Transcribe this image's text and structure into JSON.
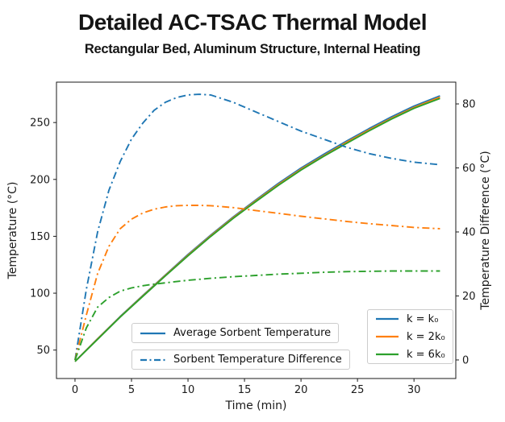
{
  "title": "Detailed AC-TSAC Thermal Model",
  "subtitle": "Rectangular Bed, Aluminum Structure, Internal Heating",
  "chart_data": {
    "type": "line",
    "title": "Detailed AC-TSAC Thermal Model",
    "subtitle": "Rectangular Bed, Aluminum Structure, Internal Heating",
    "xlabel": "Time (min)",
    "ylabel_left": "Temperature (°C)",
    "ylabel_right": "Temperature Difference (°C)",
    "grid": false,
    "x_ticks": [
      0,
      5,
      10,
      15,
      20,
      25,
      30
    ],
    "y_left_ticks": [
      50,
      100,
      150,
      200,
      250
    ],
    "y_right_ticks": [
      0,
      20,
      40,
      60,
      80
    ],
    "x_range": [
      -1.64,
      33.7
    ],
    "y_left_range": [
      25,
      285.5
    ],
    "y_right_range": [
      -5.8,
      86.8
    ],
    "colors": {
      "k0": "#1f77b4",
      "2k0": "#ff7f0e",
      "6k0": "#2ca02c"
    },
    "series": [
      {
        "id": "avg-temp-k0",
        "name": "Average Sorbent Temperature (k = k₀)",
        "color": "#1f77b4",
        "style": "solid",
        "axis": "left",
        "x": [
          0,
          2,
          4,
          6,
          8,
          10,
          12,
          14,
          16,
          18,
          20,
          22,
          24,
          26,
          28,
          30,
          32.3
        ],
        "y": [
          40,
          60,
          79.5,
          98,
          116,
          134,
          151,
          167,
          182,
          196.5,
          210,
          222,
          233.5,
          244.5,
          255,
          264.5,
          273.5
        ]
      },
      {
        "id": "avg-temp-2k0",
        "name": "Average Sorbent Temperature (k = 2k₀)",
        "color": "#ff7f0e",
        "style": "solid",
        "axis": "left",
        "x": [
          0,
          2,
          4,
          6,
          8,
          10,
          12,
          14,
          16,
          18,
          20,
          22,
          24,
          26,
          28,
          30,
          32.3
        ],
        "y": [
          40,
          59.8,
          79.2,
          97.6,
          115.6,
          133.4,
          150.4,
          166.4,
          181.2,
          195.6,
          209,
          220.8,
          232.4,
          243.4,
          253.8,
          263.3,
          272.3
        ]
      },
      {
        "id": "avg-temp-6k0",
        "name": "Average Sorbent Temperature (k = 6k₀)",
        "color": "#2ca02c",
        "style": "solid",
        "axis": "left",
        "x": [
          0,
          2,
          4,
          6,
          8,
          10,
          12,
          14,
          16,
          18,
          20,
          22,
          24,
          26,
          28,
          30,
          32.3
        ],
        "y": [
          40,
          59.5,
          79,
          97.2,
          115.2,
          132.8,
          149.8,
          165.8,
          180.5,
          194.8,
          208.2,
          220.2,
          231.5,
          242.5,
          253,
          262.5,
          271.2
        ]
      },
      {
        "id": "temp-diff-k0",
        "name": "Sorbent Temperature Difference (k = k₀)",
        "color": "#1f77b4",
        "style": "dashdot",
        "axis": "right",
        "x": [
          0,
          1,
          2,
          3,
          4,
          5,
          6,
          7,
          8,
          9,
          10,
          11,
          12,
          14,
          16,
          18,
          20,
          22,
          24,
          26,
          28,
          30,
          32.3
        ],
        "y": [
          0,
          22,
          40,
          53,
          62,
          69,
          74,
          78,
          80.5,
          82,
          82.8,
          83,
          82.8,
          80.5,
          77.5,
          74.5,
          71.5,
          69,
          66.5,
          64.5,
          63,
          61.8,
          61
        ]
      },
      {
        "id": "temp-diff-2k0",
        "name": "Sorbent Temperature Difference (k = 2k₀)",
        "color": "#ff7f0e",
        "style": "dashdot",
        "axis": "right",
        "x": [
          0,
          1,
          2,
          3,
          4,
          5,
          6,
          7,
          8,
          9,
          10,
          11,
          12,
          14,
          16,
          18,
          20,
          22,
          24,
          26,
          28,
          30,
          32.3
        ],
        "y": [
          0,
          14,
          27,
          35.5,
          41,
          44,
          45.9,
          47.1,
          47.8,
          48.2,
          48.3,
          48.3,
          48.2,
          47.6,
          46.7,
          45.8,
          44.9,
          44.1,
          43.3,
          42.6,
          42,
          41.4,
          41
        ]
      },
      {
        "id": "temp-diff-6k0",
        "name": "Sorbent Temperature Difference (k = 6k₀)",
        "color": "#2ca02c",
        "style": "dashdot",
        "axis": "right",
        "x": [
          0,
          1,
          2,
          3,
          4,
          5,
          6,
          7,
          8,
          9,
          10,
          11,
          12,
          14,
          16,
          18,
          20,
          22,
          24,
          26,
          28,
          30,
          32.3
        ],
        "y": [
          0,
          10,
          16.5,
          19.5,
          21.5,
          22.5,
          23.2,
          23.7,
          24.1,
          24.5,
          24.9,
          25.2,
          25.5,
          26,
          26.4,
          26.8,
          27.1,
          27.4,
          27.6,
          27.7,
          27.8,
          27.8,
          27.8
        ]
      }
    ],
    "legend_lines": {
      "items": [
        {
          "label": "Average Sorbent Temperature",
          "style": "solid",
          "color": "#1f77b4"
        },
        {
          "label": "Sorbent Temperature Difference",
          "style": "dashdot",
          "color": "#1f77b4"
        }
      ]
    },
    "legend_k": {
      "items": [
        {
          "label": "k = k₀",
          "color": "#1f77b4"
        },
        {
          "label": "k = 2k₀",
          "color": "#ff7f0e"
        },
        {
          "label": "k = 6k₀",
          "color": "#2ca02c"
        }
      ]
    }
  }
}
